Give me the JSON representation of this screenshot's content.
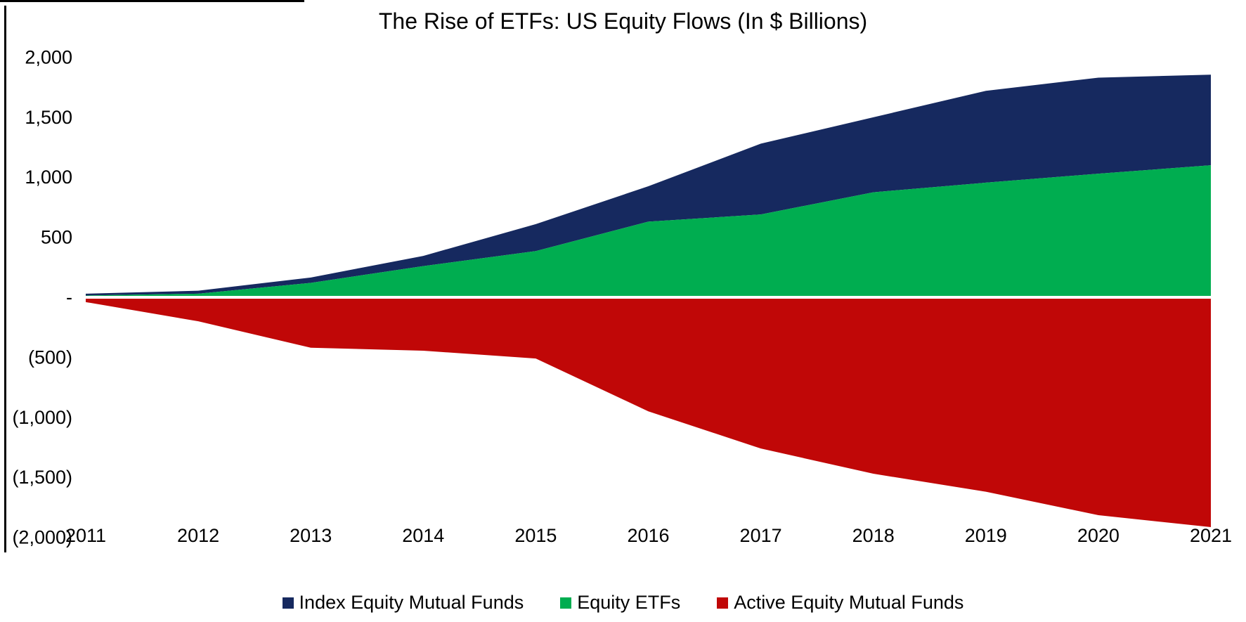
{
  "page": {
    "background": "#FFFFFF"
  },
  "chart": {
    "title": "The Rise of ETFs: US Equity Flows (In $ Billions)"
  },
  "chart_data": {
    "type": "area",
    "stacked": true,
    "title": "The Rise of ETFs: US Equity Flows (In $ Billions)",
    "units": "$ Billions (cumulative flows)",
    "x": [
      "2011",
      "2012",
      "2013",
      "2014",
      "2015",
      "2016",
      "2017",
      "2018",
      "2019",
      "2020",
      "2021"
    ],
    "series": [
      {
        "name": "Index Equity Mutual Funds",
        "color": "#16295F",
        "values": [
          15,
          25,
          45,
          85,
          225,
          295,
          590,
          625,
          765,
          800,
          755
        ]
      },
      {
        "name": "Equity ETFs",
        "color": "#00AD50",
        "values": [
          15,
          30,
          120,
          260,
          385,
          630,
          690,
          875,
          955,
          1030,
          1100
        ]
      },
      {
        "name": "Active Equity Mutual Funds",
        "color": "#C00707",
        "values": [
          -40,
          -200,
          -420,
          -445,
          -510,
          -950,
          -1260,
          -1470,
          -1620,
          -1815,
          -1915
        ]
      }
    ],
    "positive_stack_order": [
      "Equity ETFs",
      "Index Equity Mutual Funds"
    ],
    "ylim": [
      -2000,
      2000
    ],
    "y_ticks": [
      {
        "value": 2000,
        "label": "2,000"
      },
      {
        "value": 1500,
        "label": "1,500"
      },
      {
        "value": 1000,
        "label": "1,000"
      },
      {
        "value": 500,
        "label": "500"
      },
      {
        "value": 0,
        "label": "-"
      },
      {
        "value": -500,
        "label": "(500)"
      },
      {
        "value": -1000,
        "label": "(1,000)"
      },
      {
        "value": -1500,
        "label": "(1,500)"
      },
      {
        "value": -2000,
        "label": "(2,000)"
      }
    ],
    "grid": false,
    "legend_position": "bottom",
    "legend_items": [
      "Index Equity Mutual Funds",
      "Equity ETFs",
      "Active Equity Mutual Funds"
    ],
    "zero_line_color": "#FFFFFF",
    "axis_line_color": "#000000"
  }
}
